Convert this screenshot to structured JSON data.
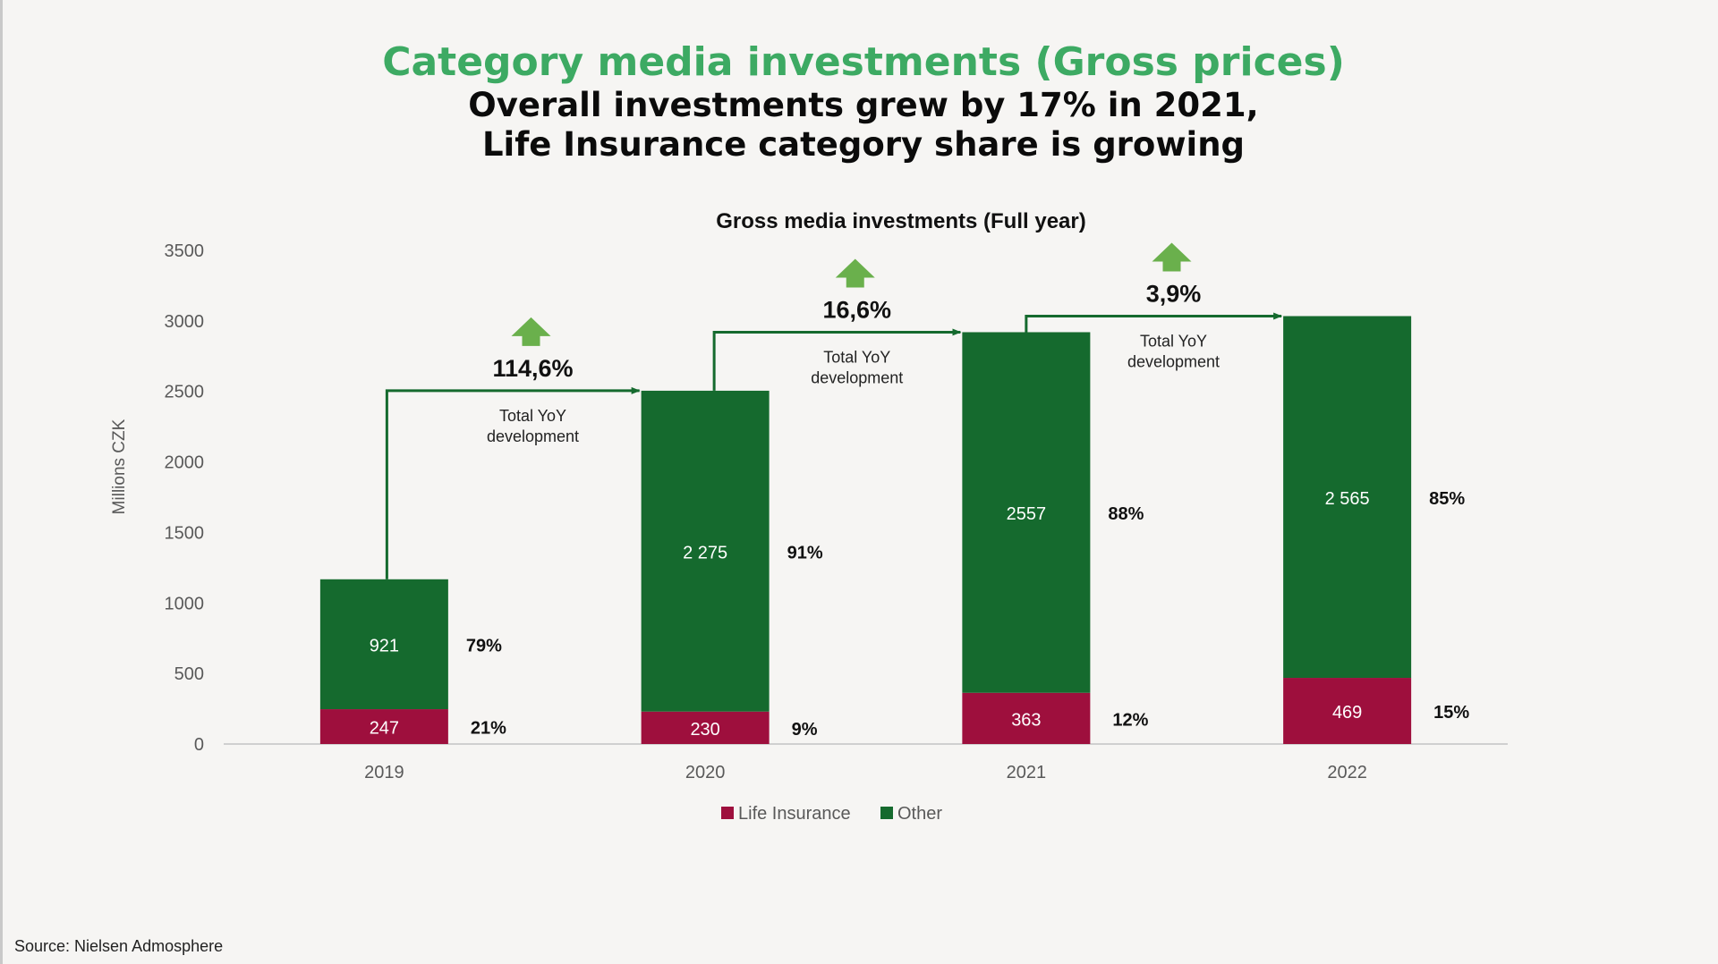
{
  "slide": {
    "title": "Category media investments (Gross prices)",
    "subtitle_line1": "Overall investments grew by 17% in 2021,",
    "subtitle_line2": "Life Insurance category share is growing",
    "source": "Source: Nielsen Admosphere"
  },
  "colors": {
    "title_green": "#3daa63",
    "other_green": "#156a2e",
    "life_insurance_red": "#9e0f3d",
    "arrow_green": "#6ab04c",
    "axis_text": "#595959"
  },
  "chart_data": {
    "type": "bar",
    "stacked": true,
    "title": "Gross media investments (Full year)",
    "ylabel": "Millions CZK",
    "xlabel": "",
    "ylim": [
      0,
      3500
    ],
    "yticks": [
      "0",
      "500",
      "1000",
      "1500",
      "2000",
      "2500",
      "3000",
      "3500"
    ],
    "categories": [
      "2019",
      "2020",
      "2021",
      "2022"
    ],
    "series": [
      {
        "name": "Life Insurance",
        "values": [
          247,
          230,
          363,
          469
        ],
        "labels": [
          "247",
          "230",
          "363",
          "469"
        ],
        "shares": [
          "21%",
          "9%",
          "12%",
          "15%"
        ]
      },
      {
        "name": "Other",
        "values": [
          921,
          2275,
          2557,
          2565
        ],
        "labels": [
          "921",
          "2 275",
          "2557",
          "2 565"
        ],
        "shares": [
          "79%",
          "91%",
          "88%",
          "85%"
        ]
      }
    ],
    "yoy": [
      {
        "value": "114,6%",
        "label_line1": "Total YoY",
        "label_line2": "development"
      },
      {
        "value": "16,6%",
        "label_line1": "Total YoY",
        "label_line2": "development"
      },
      {
        "value": "3,9%",
        "label_line1": "Total YoY",
        "label_line2": "development"
      }
    ],
    "legend_position": "bottom",
    "grid": false
  }
}
